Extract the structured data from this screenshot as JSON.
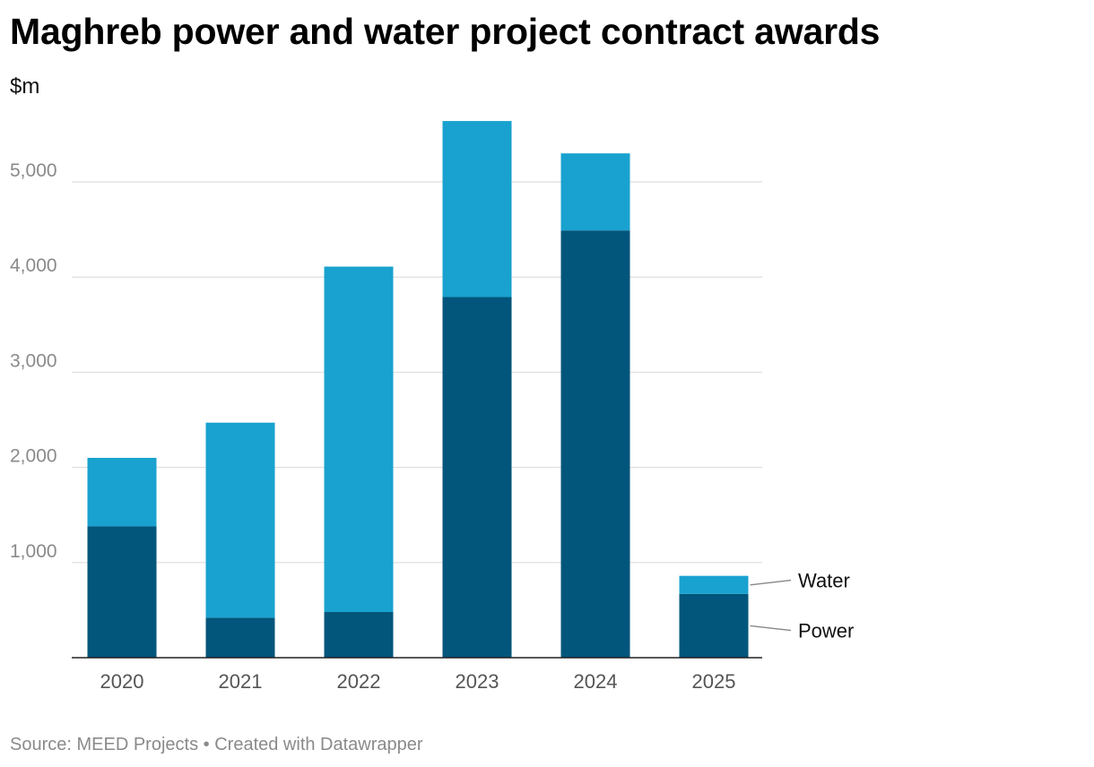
{
  "chart_data": {
    "type": "bar",
    "stacked": true,
    "title": "Maghreb power and water project contract awards",
    "ylabel": "$m",
    "xlabel": "",
    "categories": [
      "2020",
      "2021",
      "2022",
      "2023",
      "2024",
      "2025"
    ],
    "series": [
      {
        "name": "Power",
        "values": [
          1380,
          420,
          480,
          3790,
          4490,
          670
        ],
        "color": "#02557b"
      },
      {
        "name": "Water",
        "values": [
          720,
          2050,
          3630,
          1850,
          810,
          190
        ],
        "color": "#19a2cf"
      }
    ],
    "ylim": [
      0,
      5650
    ],
    "yticks": [
      1000,
      2000,
      3000,
      4000,
      5000
    ],
    "ytick_labels": [
      "1,000",
      "2,000",
      "3,000",
      "4,000",
      "5,000"
    ],
    "grid": true,
    "legend": "direct labels at right of last bar"
  },
  "footer": {
    "source": "Source: MEED Projects",
    "separator": "•",
    "credit": "Created with Datawrapper"
  }
}
